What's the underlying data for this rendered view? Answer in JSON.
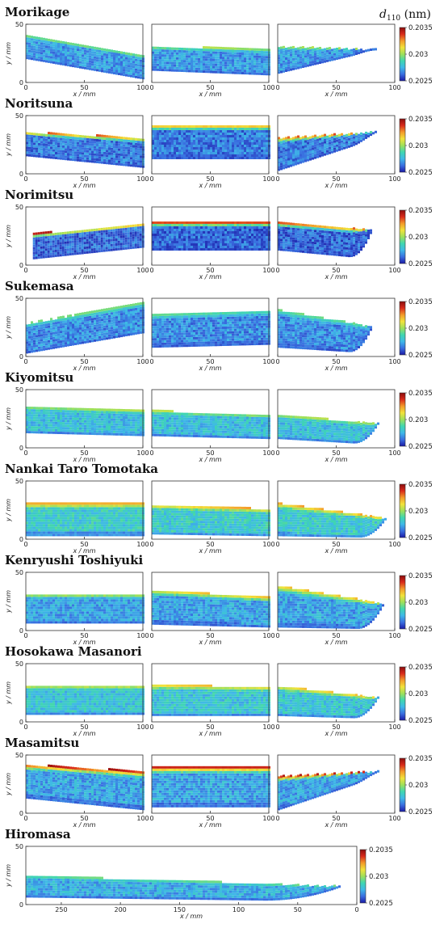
{
  "chart_data": {
    "type": "heatmap",
    "colorbar": {
      "title_symbol": "d",
      "title_subscript": "110",
      "title_unit": " (nm)",
      "ticks": [
        0.2035,
        0.203,
        0.2025
      ],
      "range": [
        0.2025,
        0.2035
      ],
      "colors": [
        "#1a1aa6",
        "#3a6fe0",
        "#3fb8e8",
        "#3fd6b0",
        "#9ee05a",
        "#f2e23a",
        "#f39a2a",
        "#d92a1a",
        "#8b0d0d"
      ]
    },
    "axes": {
      "xlabel": "x / mm",
      "ylabel": "y / mm",
      "x_ticks": [
        0,
        50,
        100
      ],
      "y_ticks": [
        0,
        50
      ],
      "xlim": [
        0,
        100
      ],
      "ylim": [
        0,
        50
      ],
      "wide_x_ticks": [
        250,
        200,
        150,
        100,
        50,
        0
      ],
      "wide_xlim": [
        280,
        0
      ]
    },
    "swords": [
      {
        "name": "Morikage"
      },
      {
        "name": "Noritsuna"
      },
      {
        "name": "Norimitsu"
      },
      {
        "name": "Sukemasa"
      },
      {
        "name": "Kiyomitsu"
      },
      {
        "name": "Nankai Taro Tomotaka"
      },
      {
        "name": "Kenryushi Toshiyuki"
      },
      {
        "name": "Hosokawa Masanori"
      },
      {
        "name": "Masamitsu"
      },
      {
        "name": "Hiromasa"
      }
    ]
  }
}
